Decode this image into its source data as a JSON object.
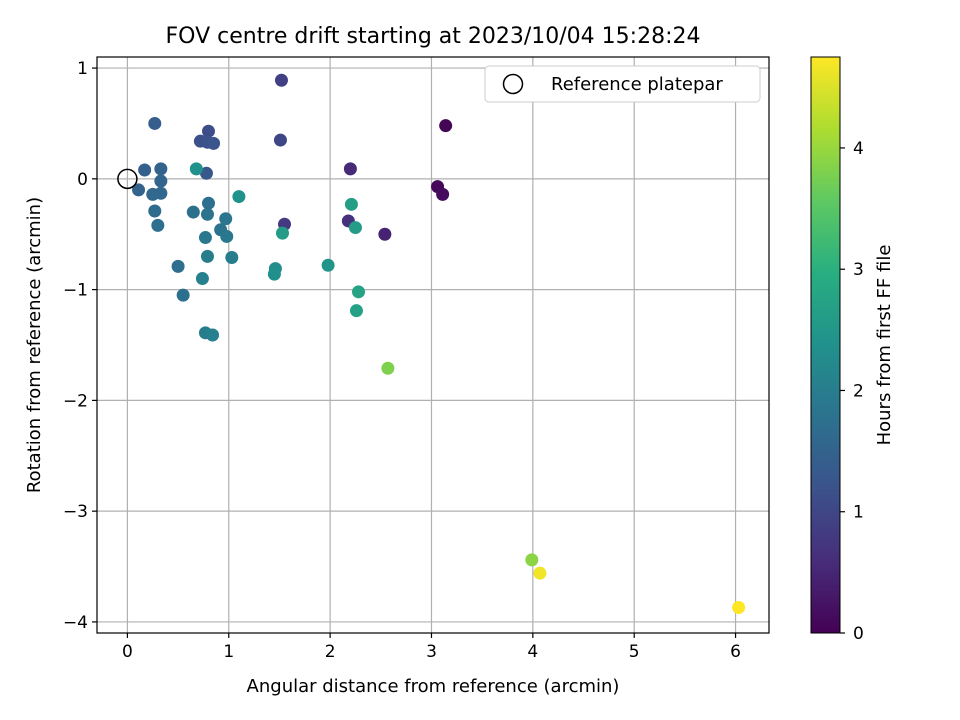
{
  "chart_data": {
    "type": "scatter",
    "title": "FOV centre drift starting at 2023/10/04 15:28:24",
    "xlabel": "Angular distance from reference (arcmin)",
    "ylabel": "Rotation from reference (arcmin)",
    "xlim": [
      -0.3,
      6.33
    ],
    "ylim": [
      -4.1,
      1.1
    ],
    "xticks": [
      0,
      1,
      2,
      3,
      4,
      5,
      6
    ],
    "yticks": [
      -4,
      -3,
      -2,
      -1,
      0,
      1
    ],
    "xtick_labels": [
      "0",
      "1",
      "2",
      "3",
      "4",
      "5",
      "6"
    ],
    "ytick_labels": [
      "−4",
      "−3",
      "−2",
      "−1",
      "0",
      "1"
    ],
    "grid": true,
    "legend": {
      "position": "top-right",
      "entries": [
        {
          "label": "Reference platepar",
          "marker": "open-circle"
        }
      ]
    },
    "colorbar": {
      "label": "Hours from first FF file",
      "colormap": "viridis",
      "range": [
        0,
        4.75
      ],
      "ticks": [
        0,
        1,
        2,
        3,
        4
      ],
      "tick_labels": [
        "0",
        "1",
        "2",
        "3",
        "4"
      ]
    },
    "reference_point": {
      "x": 0,
      "y": 0
    },
    "points": [
      {
        "x": 3.14,
        "y": 0.48,
        "c": 0.05
      },
      {
        "x": 3.06,
        "y": -0.07,
        "c": 0.1
      },
      {
        "x": 3.11,
        "y": -0.14,
        "c": 0.15
      },
      {
        "x": 2.54,
        "y": -0.5,
        "c": 0.45
      },
      {
        "x": 2.2,
        "y": 0.09,
        "c": 0.55
      },
      {
        "x": 2.18,
        "y": -0.38,
        "c": 0.65
      },
      {
        "x": 1.55,
        "y": -0.41,
        "c": 0.8
      },
      {
        "x": 1.52,
        "y": 0.89,
        "c": 0.9
      },
      {
        "x": 1.51,
        "y": 0.35,
        "c": 1.0
      },
      {
        "x": 0.8,
        "y": 0.43,
        "c": 1.1
      },
      {
        "x": 0.72,
        "y": 0.34,
        "c": 1.15
      },
      {
        "x": 0.79,
        "y": 0.33,
        "c": 1.2
      },
      {
        "x": 0.85,
        "y": 0.32,
        "c": 1.25
      },
      {
        "x": 0.78,
        "y": 0.05,
        "c": 1.3
      },
      {
        "x": 0.27,
        "y": 0.5,
        "c": 1.4
      },
      {
        "x": 0.17,
        "y": 0.08,
        "c": 1.45
      },
      {
        "x": 0.33,
        "y": 0.09,
        "c": 1.5
      },
      {
        "x": 0.11,
        "y": -0.1,
        "c": 1.5
      },
      {
        "x": 0.33,
        "y": -0.02,
        "c": 1.55
      },
      {
        "x": 0.25,
        "y": -0.14,
        "c": 1.6
      },
      {
        "x": 0.33,
        "y": -0.13,
        "c": 1.6
      },
      {
        "x": 0.27,
        "y": -0.29,
        "c": 1.65
      },
      {
        "x": 0.3,
        "y": -0.42,
        "c": 1.7
      },
      {
        "x": 0.8,
        "y": -0.22,
        "c": 1.7
      },
      {
        "x": 0.65,
        "y": -0.3,
        "c": 1.75
      },
      {
        "x": 0.79,
        "y": -0.32,
        "c": 1.8
      },
      {
        "x": 0.92,
        "y": -0.46,
        "c": 1.8
      },
      {
        "x": 0.97,
        "y": -0.36,
        "c": 1.85
      },
      {
        "x": 0.77,
        "y": -0.53,
        "c": 1.9
      },
      {
        "x": 0.98,
        "y": -0.52,
        "c": 1.9
      },
      {
        "x": 0.5,
        "y": -0.79,
        "c": 1.7
      },
      {
        "x": 0.55,
        "y": -1.05,
        "c": 1.75
      },
      {
        "x": 0.79,
        "y": -0.7,
        "c": 2.0
      },
      {
        "x": 1.03,
        "y": -0.71,
        "c": 2.0
      },
      {
        "x": 0.74,
        "y": -0.9,
        "c": 2.05
      },
      {
        "x": 0.77,
        "y": -1.39,
        "c": 2.0
      },
      {
        "x": 0.84,
        "y": -1.41,
        "c": 2.05
      },
      {
        "x": 0.68,
        "y": 0.09,
        "c": 2.4
      },
      {
        "x": 1.1,
        "y": -0.16,
        "c": 2.4
      },
      {
        "x": 1.46,
        "y": -0.81,
        "c": 2.3
      },
      {
        "x": 1.45,
        "y": -0.86,
        "c": 2.35
      },
      {
        "x": 1.53,
        "y": -0.49,
        "c": 2.6
      },
      {
        "x": 1.98,
        "y": -0.78,
        "c": 2.45
      },
      {
        "x": 2.21,
        "y": -0.23,
        "c": 2.65
      },
      {
        "x": 2.25,
        "y": -0.44,
        "c": 2.6
      },
      {
        "x": 2.28,
        "y": -1.02,
        "c": 2.75
      },
      {
        "x": 2.26,
        "y": -1.19,
        "c": 2.7
      },
      {
        "x": 2.57,
        "y": -1.71,
        "c": 3.8
      },
      {
        "x": 3.99,
        "y": -3.44,
        "c": 3.9
      },
      {
        "x": 4.07,
        "y": -3.56,
        "c": 4.65
      },
      {
        "x": 6.03,
        "y": -3.87,
        "c": 4.75
      }
    ]
  }
}
